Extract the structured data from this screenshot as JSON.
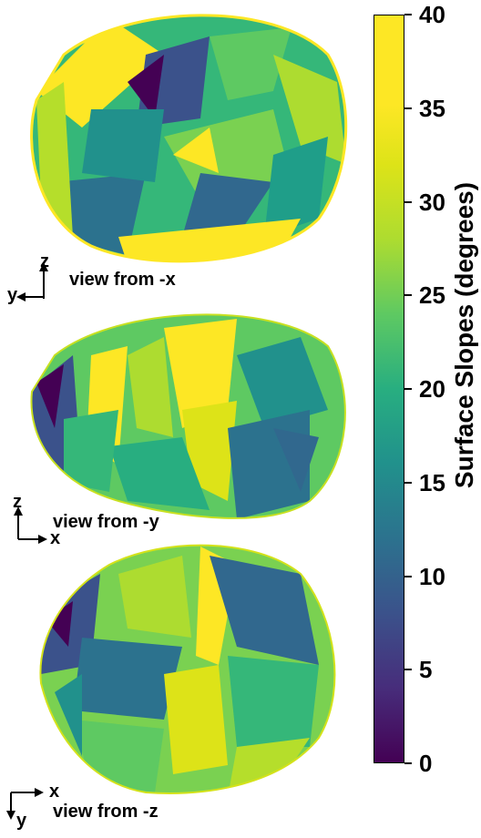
{
  "colorbar": {
    "title": "Surface Slopes (degrees)",
    "ticks": [
      "0",
      "5",
      "10",
      "15",
      "20",
      "25",
      "30",
      "35",
      "40"
    ],
    "range": [
      0,
      40
    ],
    "colormap": "viridis"
  },
  "views": [
    {
      "label": "view from -x",
      "axis_h": "y",
      "axis_v": "z"
    },
    {
      "label": "view from -y",
      "axis_h": "x",
      "axis_v": "z"
    },
    {
      "label": "view from -z",
      "axis_h": "x",
      "axis_v": "y"
    }
  ],
  "colors": {
    "low": "#440154",
    "mid": "#21918c",
    "high": "#fde725"
  }
}
